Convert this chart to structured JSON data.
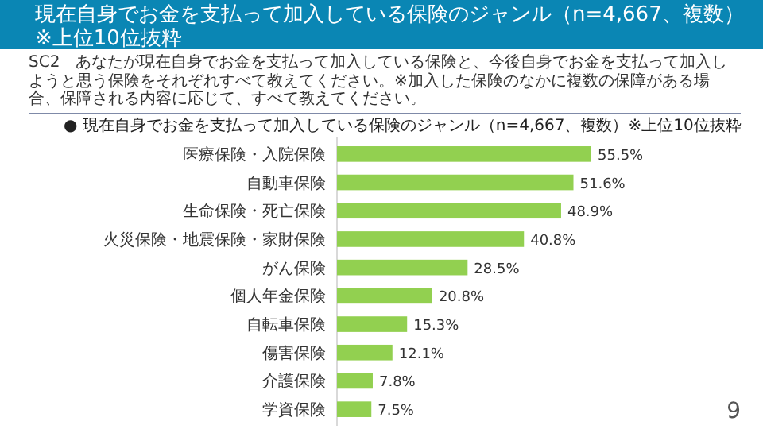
{
  "chart_data": {
    "type": "bar",
    "orientation": "horizontal",
    "title": "現在自身でお金を支払って加入している保険のジャンル（n=4,667、複数）※上位10位抜粋",
    "subtitle": "● 現在自身でお金を支払って加入している保険のジャンル（n=4,667、複数）※上位10位抜粋",
    "annotations": [
      "SC2　あなたが現在自身でお金を支払って加入している保険と、今後自身でお金を支払って加入しようと思う保険をそれぞれすべて教えてください。※加入した保険のなかに複数の保障がある場合、保障される内容に応じて、すべて教えてください。",
      "9"
    ],
    "categories": [
      "医療保険・入院保険",
      "自動車保険",
      "生命保険・死亡保険",
      "火災保険・地震保険・家財保険",
      "がん保険",
      "個人年金保険",
      "自転車保険",
      "傷害保険",
      "介護保険",
      "学資保険"
    ],
    "values": [
      55.5,
      51.6,
      48.9,
      40.8,
      28.5,
      20.8,
      15.3,
      12.1,
      7.8,
      7.5
    ],
    "value_labels": [
      "55.5%",
      "51.6%",
      "48.9%",
      "40.8%",
      "28.5%",
      "20.8%",
      "15.3%",
      "12.1%",
      "7.8%",
      "7.5%"
    ],
    "color": "#92d050"
  }
}
